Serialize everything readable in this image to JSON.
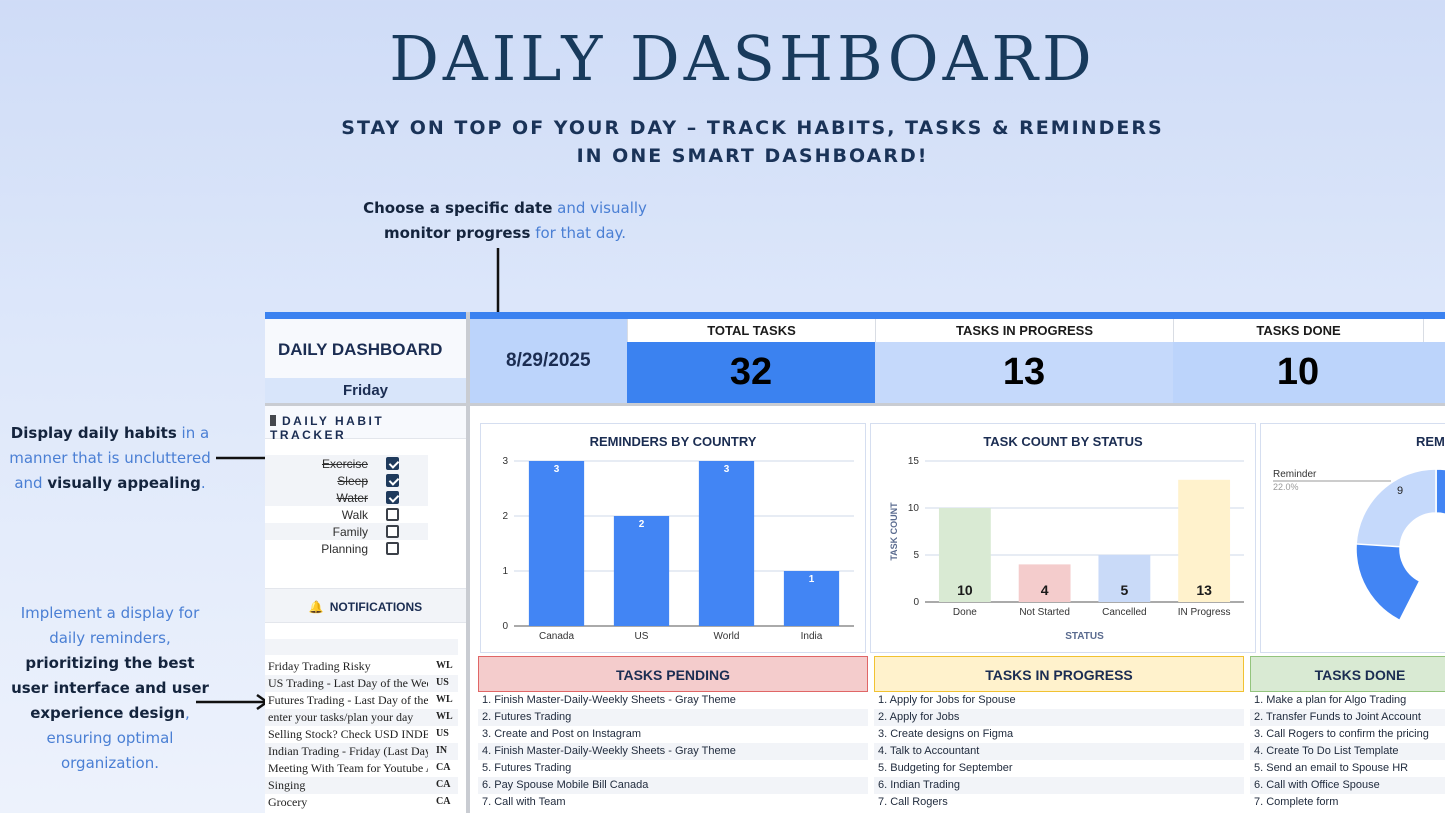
{
  "hero": {
    "title": "DAILY DASHBOARD",
    "subtitle_line1": "STAY ON TOP OF YOUR DAY – TRACK HABITS, TASKS & REMINDERS",
    "subtitle_line2": "IN ONE SMART DASHBOARD!"
  },
  "annotations": {
    "date": {
      "b1": "Choose a specific date",
      "t1": " and visually",
      "b2": "monitor progress",
      "t2": " for that day."
    },
    "habits": {
      "b1": "Display daily habits",
      "t1": " in a manner that is uncluttered and ",
      "b2": "visually appealing",
      "t2": "."
    },
    "notifications": {
      "t1": "Implement a display for daily reminders, ",
      "b1": "prioritizing the best user interface and user experience design",
      "t2": ", ensuring optimal organization."
    }
  },
  "sheet": {
    "title": "DAILY DASHBOARD",
    "day": "Friday",
    "date": "8/29/2025",
    "kpis": [
      {
        "label": "TOTAL TASKS",
        "value": "32",
        "bg": "#3b82f0"
      },
      {
        "label": "TASKS IN PROGRESS",
        "value": "13",
        "bg": "#c5d9fb"
      },
      {
        "label": "TASKS DONE",
        "value": "10",
        "bg": "#bcd4fb"
      }
    ],
    "habit_tracker": {
      "title": "DAILY HABIT TRACKER",
      "habits": [
        {
          "name": "Exercise",
          "done": true
        },
        {
          "name": "Sleep",
          "done": true
        },
        {
          "name": "Water",
          "done": true
        },
        {
          "name": "Walk",
          "done": false
        },
        {
          "name": "Family",
          "done": false
        },
        {
          "name": "Planning",
          "done": false
        }
      ]
    },
    "notifications": {
      "title": "NOTIFICATIONS",
      "bell_icon": "bell-icon",
      "items": [
        {
          "text": "Friday Trading Risky",
          "code": "WL"
        },
        {
          "text": "US Trading - Last Day of the Week",
          "code": "US"
        },
        {
          "text": "Futures Trading - Last Day of the Week",
          "code": "WL"
        },
        {
          "text": "enter your tasks/plan your day",
          "code": "WL"
        },
        {
          "text": "Selling Stock? Check USD INDEX",
          "code": "US"
        },
        {
          "text": "Indian Trading - Friday (Last Day)",
          "code": "IN"
        },
        {
          "text": "Meeting With Team for Youtube A",
          "code": "CA"
        },
        {
          "text": "Singing",
          "code": "CA"
        },
        {
          "text": "Grocery",
          "code": "CA"
        }
      ]
    },
    "task_lists": [
      {
        "title": "TASKS PENDING",
        "bg": "#f4cccc",
        "border": "#e06666",
        "items": [
          "1. Finish Master-Daily-Weekly Sheets - Gray Theme",
          "2. Futures Trading",
          "3. Create and Post on Instagram",
          "4. Finish Master-Daily-Weekly Sheets - Gray Theme",
          "5. Futures Trading",
          "6. Pay Spouse Mobile Bill Canada",
          "7. Call with Team"
        ]
      },
      {
        "title": "TASKS IN PROGRESS",
        "bg": "#fff2cc",
        "border": "#f1c232",
        "items": [
          "1. Apply for Jobs for Spouse",
          "2. Apply for Jobs",
          "3. Create designs on Figma",
          "4. Talk to Accountant",
          "5. Budgeting for September",
          "6. Indian Trading",
          "7. Call Rogers"
        ]
      },
      {
        "title": "TASKS DONE",
        "bg": "#d9ead3",
        "border": "#93c47d",
        "items": [
          "1. Make a plan for Algo Trading",
          "2. Transfer Funds to Joint Account",
          "3. Call Rogers to confirm the pricing",
          "4. Create To Do List Template",
          "5. Send an email to Spouse HR",
          "6. Call with Office Spouse",
          "7. Complete form"
        ]
      }
    ]
  },
  "chart_data": [
    {
      "type": "bar",
      "title": "REMINDERS BY COUNTRY",
      "categories": [
        "Canada",
        "US",
        "World",
        "India"
      ],
      "values": [
        3,
        2,
        3,
        1
      ],
      "ylim": [
        0,
        3
      ],
      "yticks": [
        0,
        1,
        2,
        3
      ],
      "xlabel": "",
      "ylabel": "",
      "color": "#4285f4",
      "grid": true
    },
    {
      "type": "bar",
      "title": "TASK COUNT BY STATUS",
      "categories": [
        "Done",
        "Not Started",
        "Cancelled",
        "IN Progress"
      ],
      "values": [
        10,
        4,
        5,
        13
      ],
      "colors": [
        "#d9ead3",
        "#f4cccc",
        "#c9daf8",
        "#fff2cc"
      ],
      "ylim": [
        0,
        15
      ],
      "yticks": [
        0,
        5,
        10,
        15
      ],
      "xlabel": "STATUS",
      "ylabel": "TASK COUNT",
      "grid": true
    },
    {
      "type": "pie",
      "title": "REMINDER",
      "slices": [
        {
          "label": "Reminder",
          "value": 9,
          "percent": "22.0%"
        }
      ],
      "colors": [
        "#c5d9fb",
        "#4285f4"
      ]
    }
  ]
}
